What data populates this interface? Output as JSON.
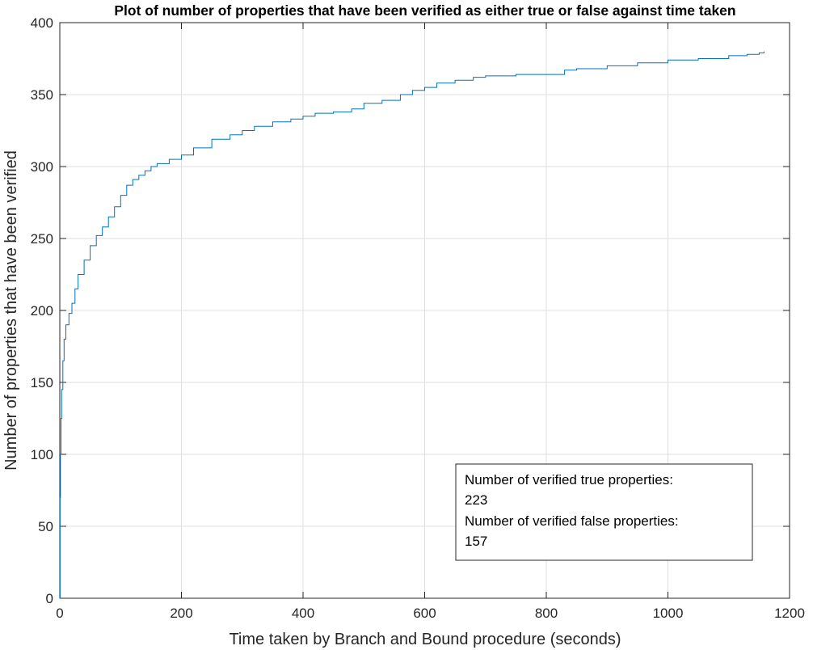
{
  "chart_data": {
    "type": "line",
    "title": "Plot of number of properties that have been verified as either true or false against time taken",
    "xlabel": "Time taken by Branch and Bound procedure (seconds)",
    "ylabel": "Number of properties that have been verified",
    "xlim": [
      0,
      1200
    ],
    "ylim": [
      0,
      400
    ],
    "xticks": [
      0,
      200,
      400,
      600,
      800,
      1000,
      1200
    ],
    "yticks": [
      0,
      50,
      100,
      150,
      200,
      250,
      300,
      350,
      400
    ],
    "grid": true,
    "line_color": "#0072BD",
    "series": [
      {
        "x": [
          0,
          0.5,
          1,
          2,
          3,
          5,
          7,
          10,
          15,
          20,
          25,
          30,
          40,
          50,
          60,
          70,
          80,
          90,
          100,
          110,
          120,
          130,
          140,
          150,
          160,
          180,
          200,
          220,
          250,
          280,
          300,
          320,
          350,
          380,
          400,
          420,
          450,
          480,
          500,
          530,
          560,
          580,
          600,
          620,
          650,
          680,
          700,
          750,
          800,
          830,
          850,
          900,
          950,
          1000,
          1050,
          1100,
          1130,
          1150,
          1158
        ],
        "y": [
          0,
          70,
          100,
          125,
          145,
          165,
          180,
          190,
          198,
          205,
          215,
          225,
          235,
          245,
          252,
          258,
          265,
          272,
          280,
          287,
          291,
          294,
          297,
          300,
          302,
          305,
          308,
          313,
          319,
          322,
          325,
          328,
          331,
          333,
          335,
          337,
          338,
          340,
          344,
          346,
          350,
          353,
          355,
          358,
          360,
          362,
          363,
          364,
          364,
          367,
          368,
          370,
          372,
          374,
          375,
          377,
          378,
          379,
          380
        ]
      }
    ],
    "annotation": {
      "line1": "Number of verified true properties:",
      "line2": "223",
      "line3": "Number of verified false properties:",
      "line4": "157"
    }
  }
}
